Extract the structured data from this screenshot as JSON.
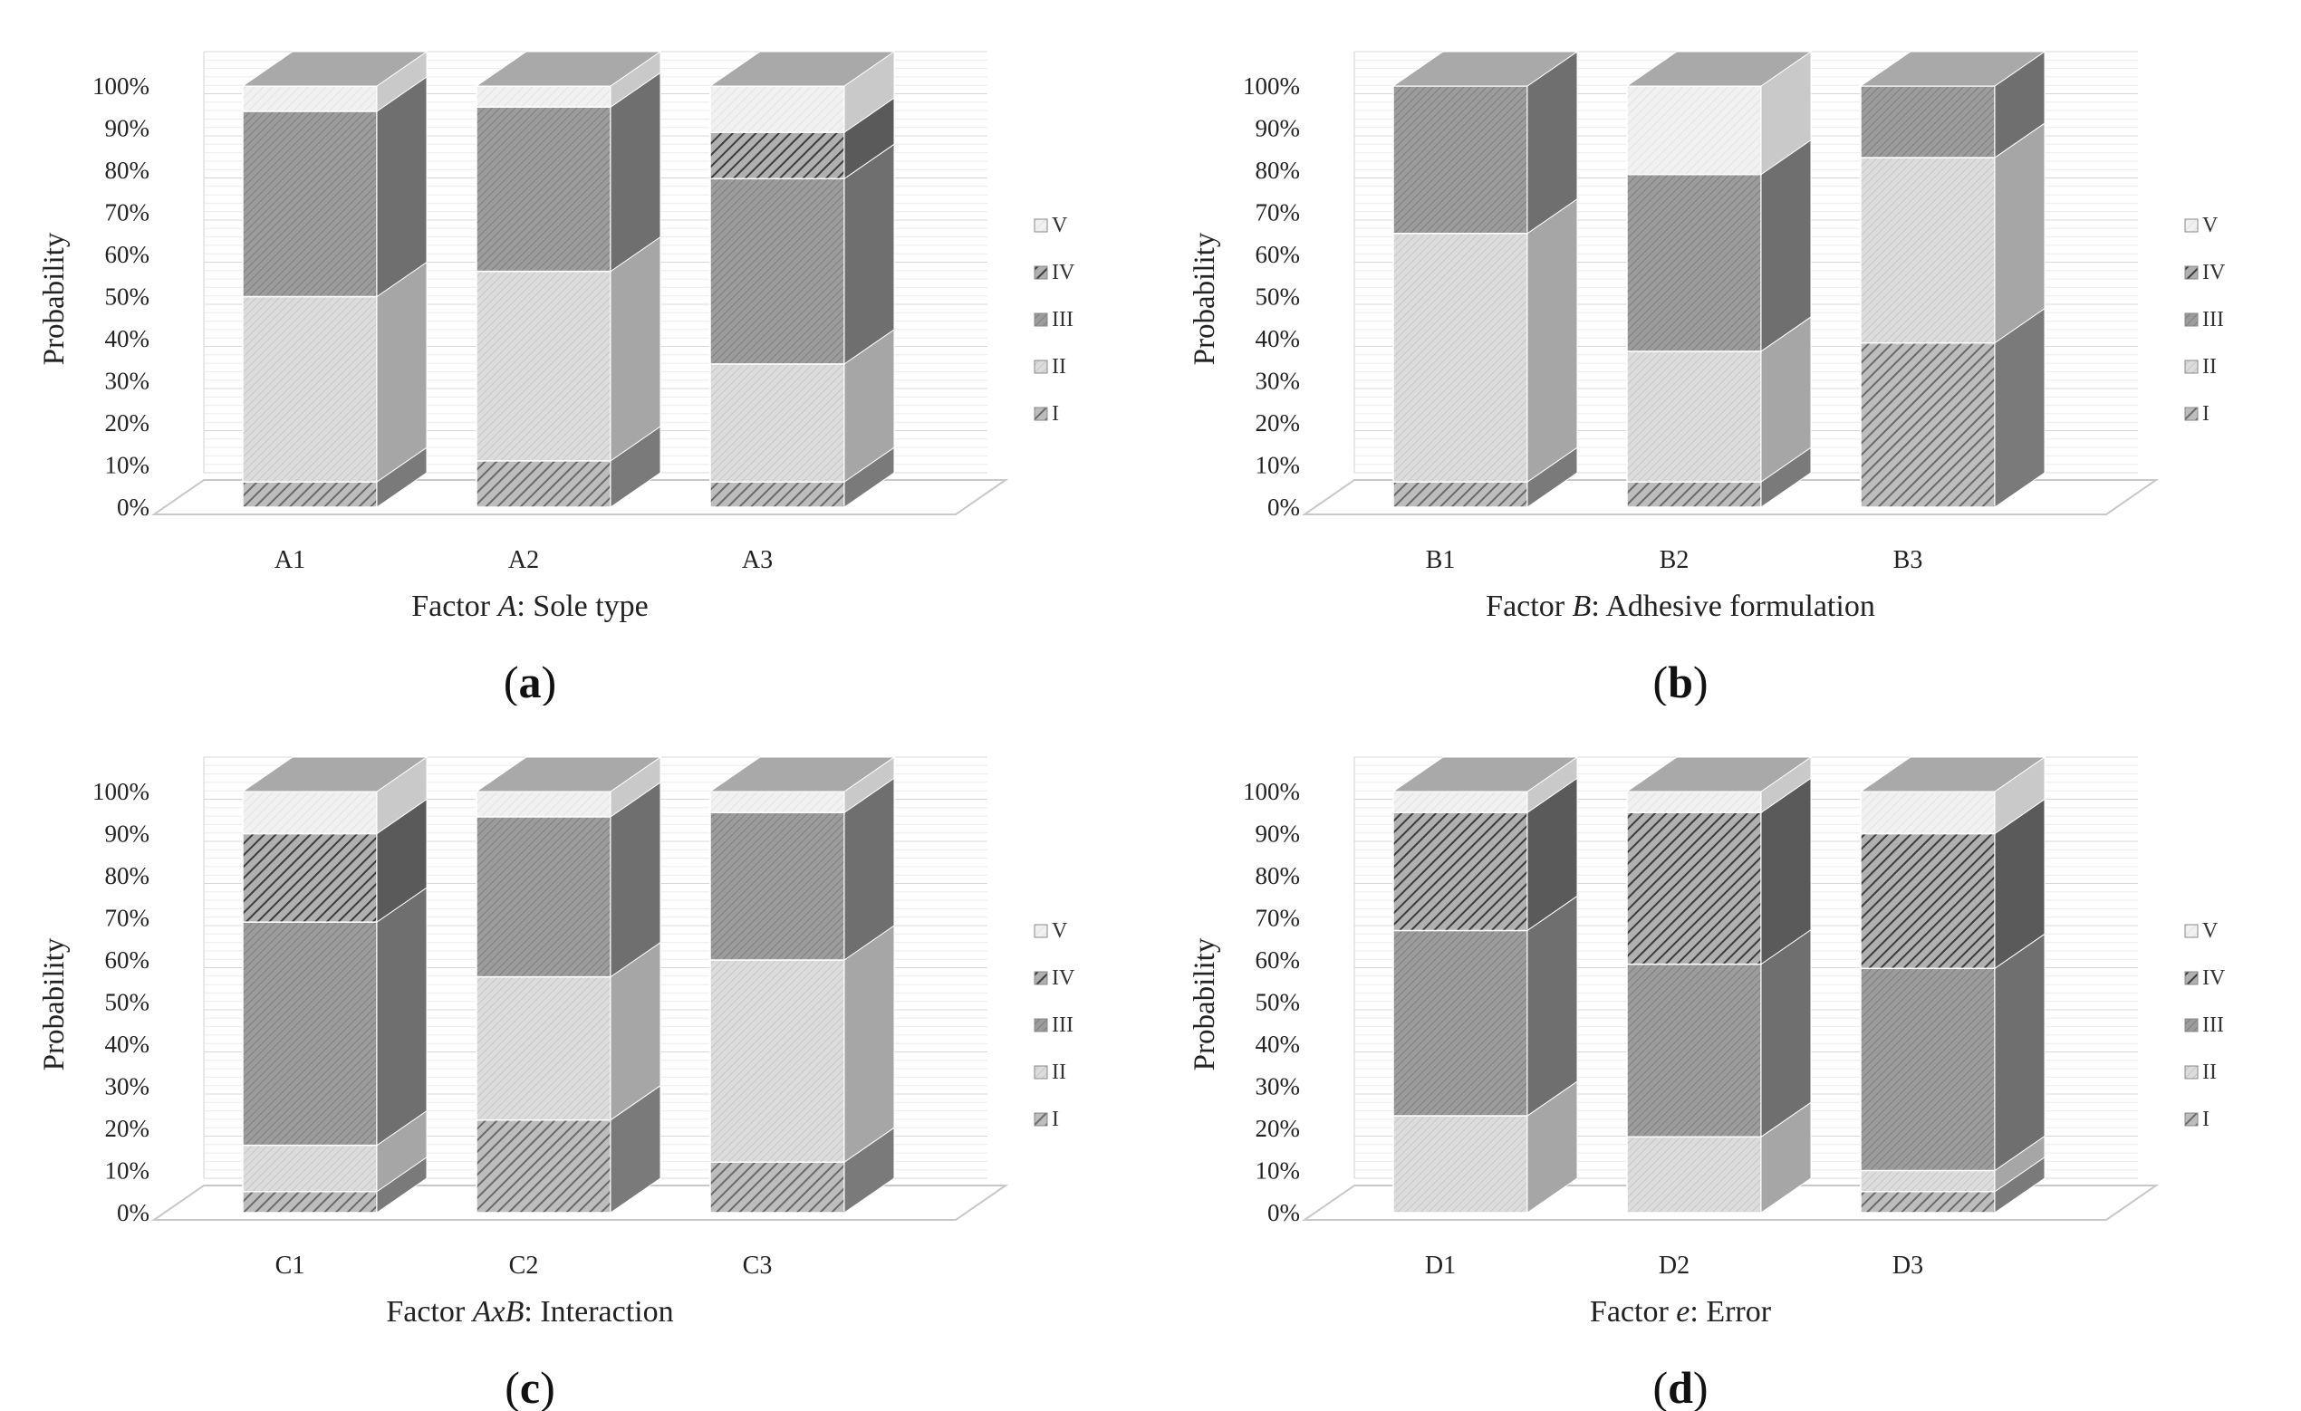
{
  "chart_data": [
    {
      "type": "bar",
      "stacked": true,
      "panel_label": "a",
      "title": "",
      "xlabel_prefix": "Factor ",
      "xlabel_factor": "A",
      "xlabel_suffix": ": Sole type",
      "ylabel": "Probability",
      "ylim": [
        0,
        100
      ],
      "yticks": [
        "0%",
        "10%",
        "20%",
        "30%",
        "40%",
        "50%",
        "60%",
        "70%",
        "80%",
        "90%",
        "100%"
      ],
      "categories": [
        "A1",
        "A2",
        "A3"
      ],
      "legend": [
        "V",
        "IV",
        "III",
        "II",
        "I"
      ],
      "legend_position": "right",
      "series": [
        {
          "name": "I",
          "values": [
            6,
            11,
            6
          ]
        },
        {
          "name": "II",
          "values": [
            44,
            45,
            28
          ]
        },
        {
          "name": "III",
          "values": [
            44,
            39,
            44
          ]
        },
        {
          "name": "IV",
          "values": [
            0,
            0,
            11
          ]
        },
        {
          "name": "V",
          "values": [
            6,
            5,
            11
          ]
        }
      ]
    },
    {
      "type": "bar",
      "stacked": true,
      "panel_label": "b",
      "title": "",
      "xlabel_prefix": "Factor ",
      "xlabel_factor": "B",
      "xlabel_suffix": ": Adhesive formulation",
      "ylabel": "Probability",
      "ylim": [
        0,
        100
      ],
      "yticks": [
        "0%",
        "10%",
        "20%",
        "30%",
        "40%",
        "50%",
        "60%",
        "70%",
        "80%",
        "90%",
        "100%"
      ],
      "categories": [
        "B1",
        "B2",
        "B3"
      ],
      "legend": [
        "V",
        "IV",
        "III",
        "II",
        "I"
      ],
      "legend_position": "right",
      "series": [
        {
          "name": "I",
          "values": [
            6,
            6,
            39
          ]
        },
        {
          "name": "II",
          "values": [
            59,
            31,
            44
          ]
        },
        {
          "name": "III",
          "values": [
            35,
            42,
            17
          ]
        },
        {
          "name": "IV",
          "values": [
            0,
            0,
            0
          ]
        },
        {
          "name": "V",
          "values": [
            0,
            21,
            0
          ]
        }
      ]
    },
    {
      "type": "bar",
      "stacked": true,
      "panel_label": "c",
      "title": "",
      "xlabel_prefix": "Factor ",
      "xlabel_factor": "AxB",
      "xlabel_suffix": ": Interaction",
      "ylabel": "Probability",
      "ylim": [
        0,
        100
      ],
      "yticks": [
        "0%",
        "10%",
        "20%",
        "30%",
        "40%",
        "50%",
        "60%",
        "70%",
        "80%",
        "90%",
        "100%"
      ],
      "categories": [
        "C1",
        "C2",
        "C3"
      ],
      "legend": [
        "V",
        "IV",
        "III",
        "II",
        "I"
      ],
      "legend_position": "right",
      "series": [
        {
          "name": "I",
          "values": [
            5,
            22,
            12
          ]
        },
        {
          "name": "II",
          "values": [
            11,
            34,
            48
          ]
        },
        {
          "name": "III",
          "values": [
            53,
            38,
            35
          ]
        },
        {
          "name": "IV",
          "values": [
            21,
            0,
            0
          ]
        },
        {
          "name": "V",
          "values": [
            10,
            6,
            5
          ]
        }
      ]
    },
    {
      "type": "bar",
      "stacked": true,
      "panel_label": "d",
      "title": "",
      "xlabel_prefix": "Factor ",
      "xlabel_factor": "e",
      "xlabel_suffix": ": Error",
      "ylabel": "Probability",
      "ylim": [
        0,
        100
      ],
      "yticks": [
        "0%",
        "10%",
        "20%",
        "30%",
        "40%",
        "50%",
        "60%",
        "70%",
        "80%",
        "90%",
        "100%"
      ],
      "categories": [
        "D1",
        "D2",
        "D3"
      ],
      "legend": [
        "V",
        "IV",
        "III",
        "II",
        "I"
      ],
      "legend_position": "right",
      "series": [
        {
          "name": "I",
          "values": [
            0,
            0,
            5
          ]
        },
        {
          "name": "II",
          "values": [
            23,
            18,
            5
          ]
        },
        {
          "name": "III",
          "values": [
            44,
            41,
            48
          ]
        },
        {
          "name": "IV",
          "values": [
            28,
            36,
            32
          ]
        },
        {
          "name": "V",
          "values": [
            5,
            5,
            10
          ]
        }
      ]
    }
  ]
}
